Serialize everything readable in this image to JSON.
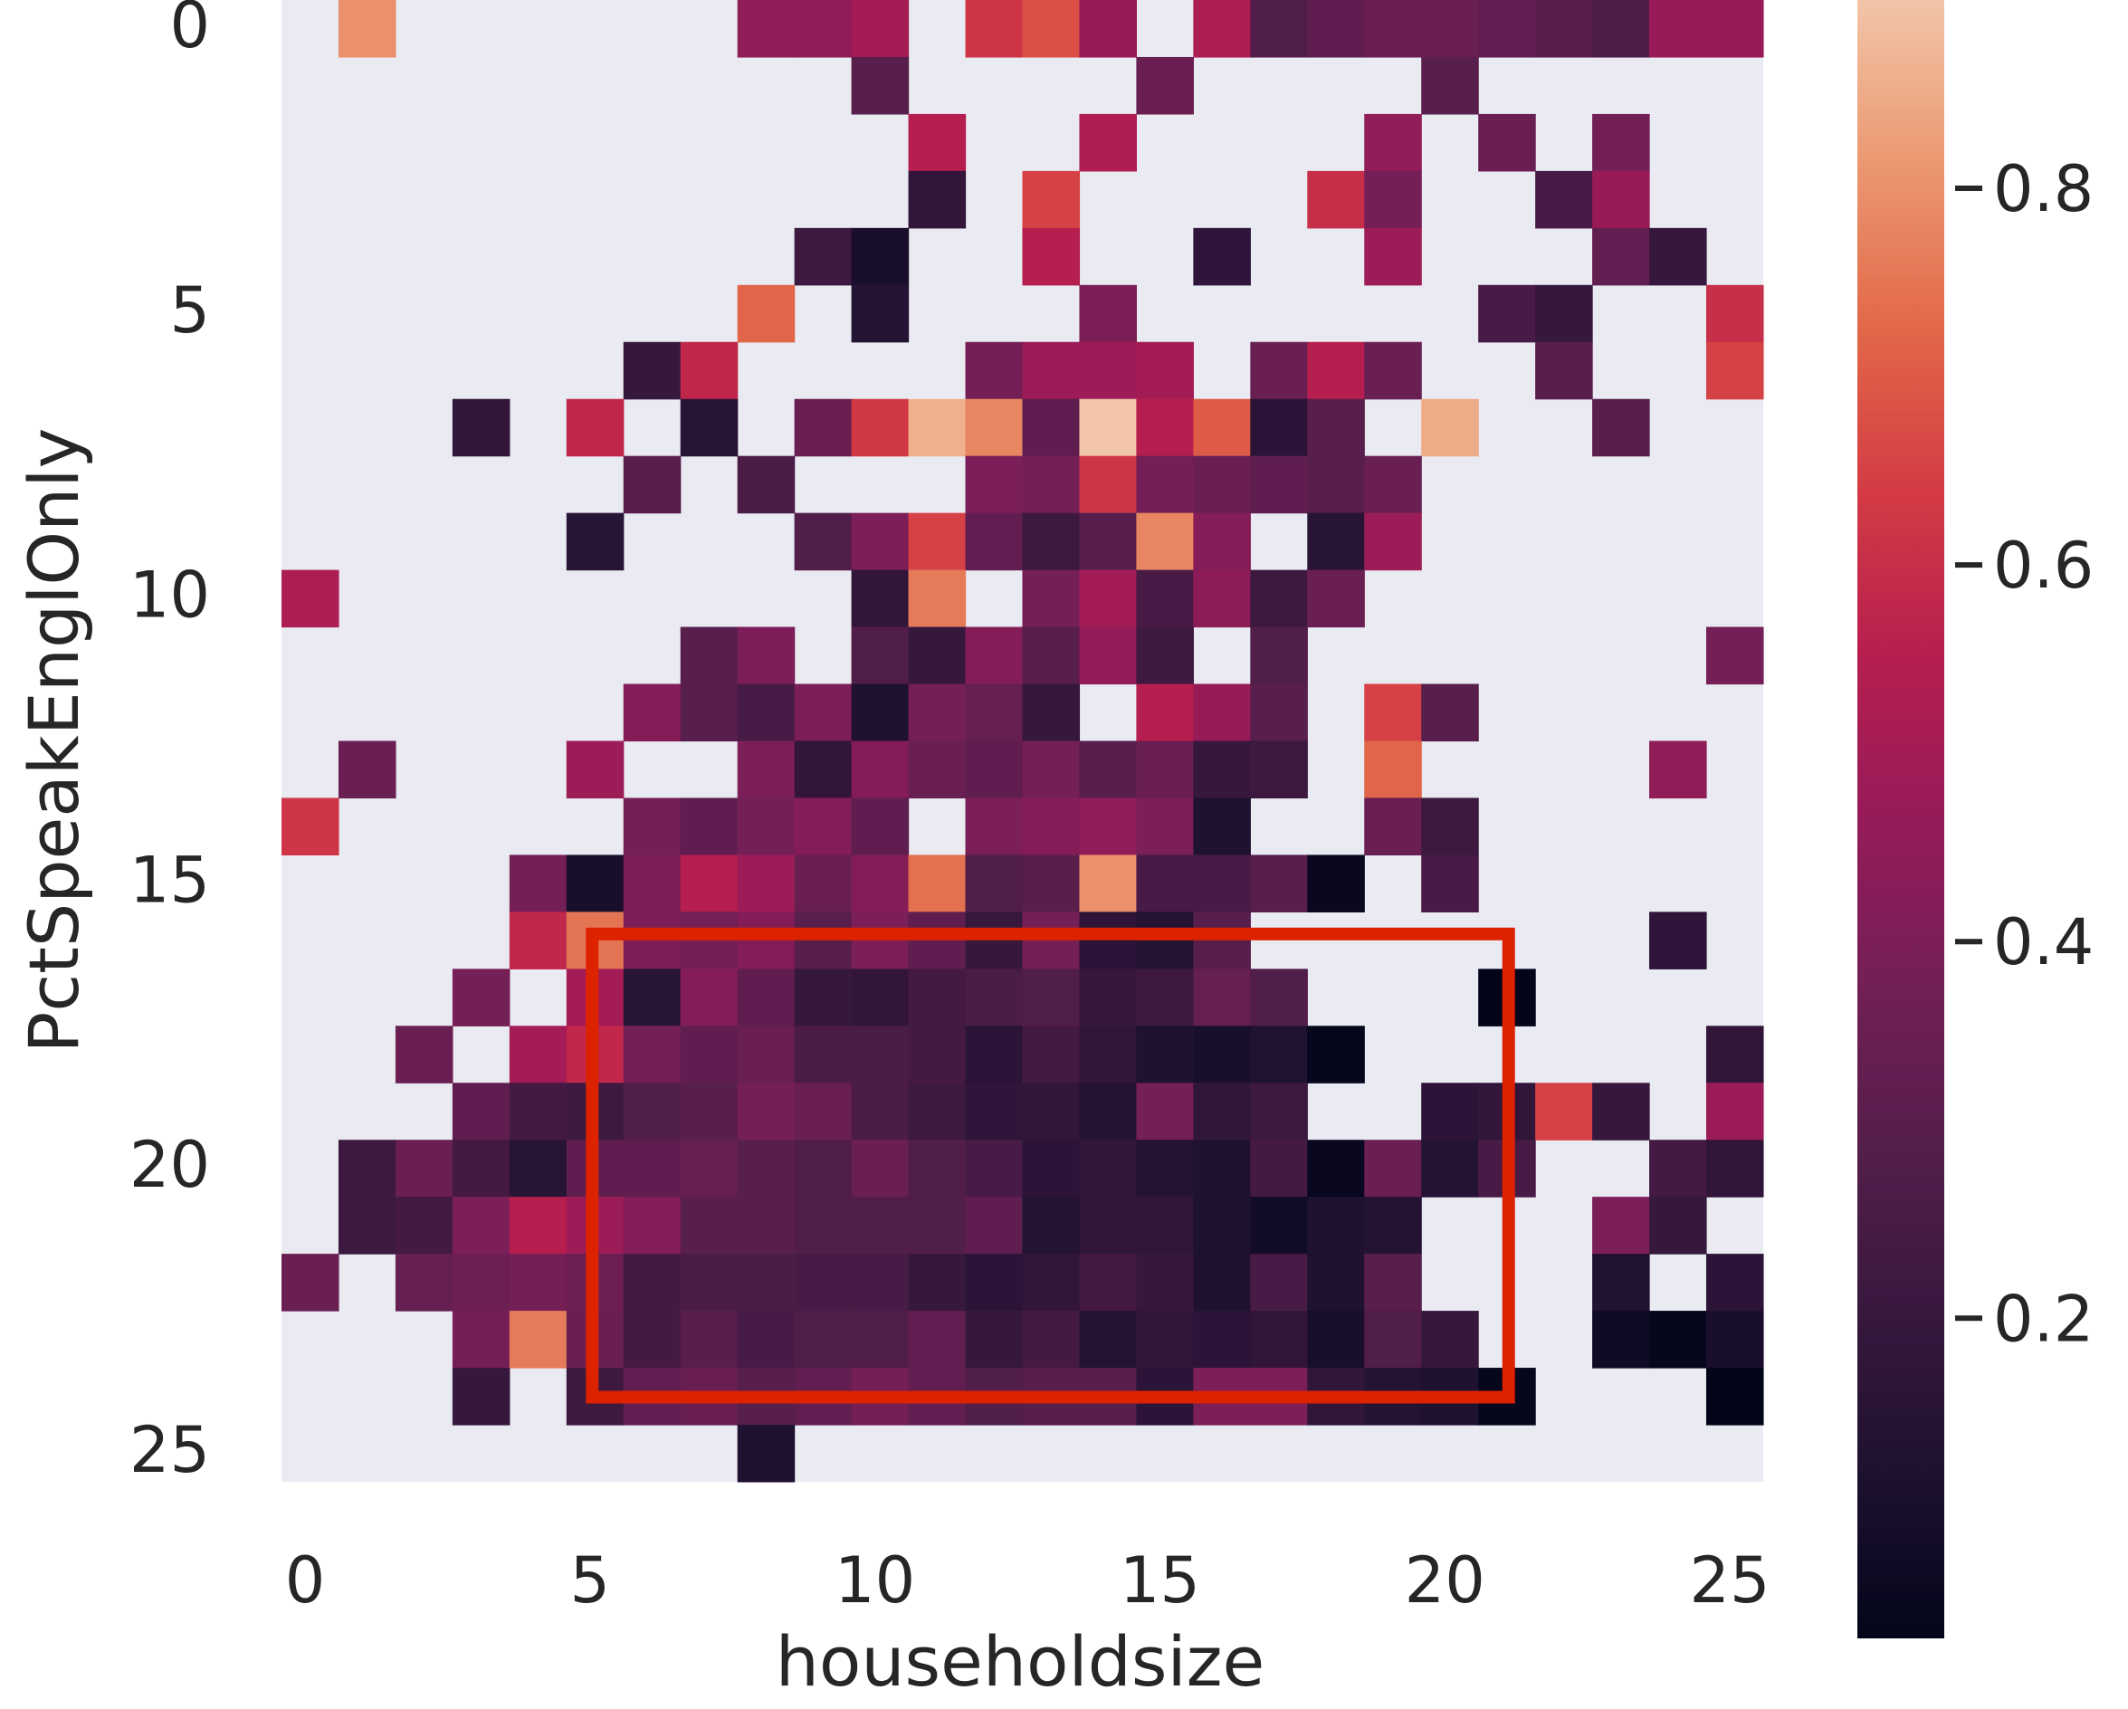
{
  "chart_data": {
    "type": "heatmap",
    "xlabel": "householdsize",
    "ylabel": "PctSpeakEnglOnly",
    "x_ticks": [
      "0",
      "5",
      "10",
      "15",
      "20",
      "25"
    ],
    "y_ticks": [
      "0",
      "5",
      "10",
      "15",
      "20",
      "25"
    ],
    "n_rows": 26,
    "n_cols": 26,
    "colorbar": {
      "ticks": [
        "0.2",
        "0.4",
        "0.6",
        "0.8"
      ],
      "range": [
        0.03,
        0.9
      ]
    },
    "background": "#eaeaf2",
    "highlight_box": {
      "color": "#dd2200",
      "x_range": [
        5.5,
        21.5
      ],
      "y_range": [
        16.5,
        24.5
      ]
    },
    "cells": [
      [
        0,
        1,
        0.8
      ],
      [
        0,
        8,
        0.45
      ],
      [
        0,
        9,
        0.45
      ],
      [
        0,
        10,
        0.5
      ],
      [
        0,
        12,
        0.62
      ],
      [
        0,
        13,
        0.68
      ],
      [
        0,
        14,
        0.47
      ],
      [
        0,
        16,
        0.52
      ],
      [
        0,
        17,
        0.28
      ],
      [
        0,
        18,
        0.32
      ],
      [
        0,
        19,
        0.35
      ],
      [
        0,
        20,
        0.35
      ],
      [
        0,
        21,
        0.33
      ],
      [
        0,
        22,
        0.3
      ],
      [
        0,
        23,
        0.27
      ],
      [
        0,
        24,
        0.47
      ],
      [
        0,
        25,
        0.47
      ],
      [
        1,
        10,
        0.3
      ],
      [
        1,
        15,
        0.35
      ],
      [
        1,
        20,
        0.3
      ],
      [
        2,
        11,
        0.55
      ],
      [
        2,
        14,
        0.53
      ],
      [
        2,
        19,
        0.45
      ],
      [
        2,
        21,
        0.35
      ],
      [
        2,
        23,
        0.38
      ],
      [
        3,
        11,
        0.18
      ],
      [
        3,
        13,
        0.65
      ],
      [
        3,
        18,
        0.6
      ],
      [
        3,
        19,
        0.38
      ],
      [
        3,
        22,
        0.25
      ],
      [
        3,
        23,
        0.47
      ],
      [
        4,
        9,
        0.22
      ],
      [
        4,
        10,
        0.1
      ],
      [
        4,
        13,
        0.55
      ],
      [
        4,
        16,
        0.17
      ],
      [
        4,
        19,
        0.48
      ],
      [
        4,
        23,
        0.33
      ],
      [
        4,
        24,
        0.2
      ],
      [
        5,
        8,
        0.72
      ],
      [
        5,
        10,
        0.14
      ],
      [
        5,
        14,
        0.4
      ],
      [
        5,
        21,
        0.25
      ],
      [
        5,
        22,
        0.2
      ],
      [
        5,
        25,
        0.6
      ],
      [
        6,
        6,
        0.2
      ],
      [
        6,
        7,
        0.58
      ],
      [
        6,
        12,
        0.38
      ],
      [
        6,
        13,
        0.48
      ],
      [
        6,
        14,
        0.48
      ],
      [
        6,
        15,
        0.5
      ],
      [
        6,
        17,
        0.35
      ],
      [
        6,
        18,
        0.55
      ],
      [
        6,
        19,
        0.35
      ],
      [
        6,
        22,
        0.3
      ],
      [
        6,
        25,
        0.65
      ],
      [
        7,
        3,
        0.18
      ],
      [
        7,
        5,
        0.58
      ],
      [
        7,
        7,
        0.15
      ],
      [
        7,
        9,
        0.35
      ],
      [
        7,
        10,
        0.63
      ],
      [
        7,
        11,
        0.86
      ],
      [
        7,
        12,
        0.78
      ],
      [
        7,
        13,
        0.32
      ],
      [
        7,
        14,
        0.9
      ],
      [
        7,
        15,
        0.55
      ],
      [
        7,
        16,
        0.7
      ],
      [
        7,
        17,
        0.16
      ],
      [
        7,
        18,
        0.3
      ],
      [
        7,
        20,
        0.85
      ],
      [
        7,
        23,
        0.3
      ],
      [
        8,
        6,
        0.3
      ],
      [
        8,
        8,
        0.26
      ],
      [
        8,
        12,
        0.4
      ],
      [
        8,
        13,
        0.38
      ],
      [
        8,
        14,
        0.62
      ],
      [
        8,
        15,
        0.38
      ],
      [
        8,
        16,
        0.35
      ],
      [
        8,
        17,
        0.32
      ],
      [
        8,
        18,
        0.3
      ],
      [
        8,
        19,
        0.35
      ],
      [
        9,
        5,
        0.15
      ],
      [
        9,
        9,
        0.28
      ],
      [
        9,
        10,
        0.4
      ],
      [
        9,
        11,
        0.65
      ],
      [
        9,
        12,
        0.33
      ],
      [
        9,
        13,
        0.22
      ],
      [
        9,
        14,
        0.3
      ],
      [
        9,
        15,
        0.78
      ],
      [
        9,
        16,
        0.42
      ],
      [
        9,
        18,
        0.15
      ],
      [
        9,
        19,
        0.48
      ],
      [
        10,
        0,
        0.52
      ],
      [
        10,
        10,
        0.18
      ],
      [
        10,
        11,
        0.76
      ],
      [
        10,
        13,
        0.38
      ],
      [
        10,
        14,
        0.5
      ],
      [
        10,
        15,
        0.25
      ],
      [
        10,
        16,
        0.44
      ],
      [
        10,
        17,
        0.22
      ],
      [
        10,
        18,
        0.35
      ],
      [
        11,
        7,
        0.3
      ],
      [
        11,
        8,
        0.4
      ],
      [
        11,
        10,
        0.28
      ],
      [
        11,
        11,
        0.2
      ],
      [
        11,
        12,
        0.42
      ],
      [
        11,
        13,
        0.3
      ],
      [
        11,
        14,
        0.46
      ],
      [
        11,
        15,
        0.22
      ],
      [
        11,
        17,
        0.28
      ],
      [
        11,
        25,
        0.38
      ],
      [
        12,
        6,
        0.42
      ],
      [
        12,
        7,
        0.3
      ],
      [
        12,
        8,
        0.25
      ],
      [
        12,
        9,
        0.4
      ],
      [
        12,
        10,
        0.12
      ],
      [
        12,
        11,
        0.38
      ],
      [
        12,
        12,
        0.34
      ],
      [
        12,
        13,
        0.2
      ],
      [
        12,
        15,
        0.55
      ],
      [
        12,
        16,
        0.47
      ],
      [
        12,
        17,
        0.3
      ],
      [
        12,
        19,
        0.65
      ],
      [
        12,
        20,
        0.3
      ],
      [
        13,
        1,
        0.35
      ],
      [
        13,
        5,
        0.48
      ],
      [
        13,
        8,
        0.4
      ],
      [
        13,
        9,
        0.18
      ],
      [
        13,
        10,
        0.42
      ],
      [
        13,
        11,
        0.35
      ],
      [
        13,
        12,
        0.32
      ],
      [
        13,
        13,
        0.38
      ],
      [
        13,
        14,
        0.3
      ],
      [
        13,
        15,
        0.35
      ],
      [
        13,
        16,
        0.2
      ],
      [
        13,
        17,
        0.22
      ],
      [
        13,
        19,
        0.72
      ],
      [
        13,
        24,
        0.45
      ],
      [
        14,
        0,
        0.62
      ],
      [
        14,
        6,
        0.38
      ],
      [
        14,
        7,
        0.32
      ],
      [
        14,
        8,
        0.38
      ],
      [
        14,
        9,
        0.42
      ],
      [
        14,
        10,
        0.32
      ],
      [
        14,
        12,
        0.4
      ],
      [
        14,
        13,
        0.42
      ],
      [
        14,
        14,
        0.45
      ],
      [
        14,
        15,
        0.4
      ],
      [
        14,
        16,
        0.12
      ],
      [
        14,
        19,
        0.35
      ],
      [
        14,
        20,
        0.22
      ],
      [
        15,
        4,
        0.38
      ],
      [
        15,
        5,
        0.1
      ],
      [
        15,
        6,
        0.4
      ],
      [
        15,
        7,
        0.55
      ],
      [
        15,
        8,
        0.48
      ],
      [
        15,
        9,
        0.35
      ],
      [
        15,
        10,
        0.42
      ],
      [
        15,
        11,
        0.74
      ],
      [
        15,
        12,
        0.28
      ],
      [
        15,
        13,
        0.3
      ],
      [
        15,
        14,
        0.8
      ],
      [
        15,
        15,
        0.25
      ],
      [
        15,
        16,
        0.25
      ],
      [
        15,
        17,
        0.3
      ],
      [
        15,
        18,
        0.05
      ],
      [
        15,
        20,
        0.25
      ],
      [
        16,
        4,
        0.58
      ],
      [
        16,
        5,
        0.75
      ],
      [
        16,
        6,
        0.4
      ],
      [
        16,
        7,
        0.38
      ],
      [
        16,
        8,
        0.42
      ],
      [
        16,
        9,
        0.3
      ],
      [
        16,
        10,
        0.4
      ],
      [
        16,
        11,
        0.32
      ],
      [
        16,
        12,
        0.2
      ],
      [
        16,
        13,
        0.38
      ],
      [
        16,
        14,
        0.16
      ],
      [
        16,
        15,
        0.14
      ],
      [
        16,
        16,
        0.3
      ],
      [
        16,
        24,
        0.17
      ],
      [
        17,
        3,
        0.38
      ],
      [
        17,
        5,
        0.5
      ],
      [
        17,
        6,
        0.15
      ],
      [
        17,
        7,
        0.42
      ],
      [
        17,
        8,
        0.32
      ],
      [
        17,
        9,
        0.2
      ],
      [
        17,
        10,
        0.18
      ],
      [
        17,
        11,
        0.24
      ],
      [
        17,
        12,
        0.26
      ],
      [
        17,
        13,
        0.28
      ],
      [
        17,
        14,
        0.2
      ],
      [
        17,
        15,
        0.22
      ],
      [
        17,
        16,
        0.34
      ],
      [
        17,
        17,
        0.28
      ],
      [
        17,
        21,
        0.03
      ],
      [
        18,
        2,
        0.35
      ],
      [
        18,
        4,
        0.5
      ],
      [
        18,
        5,
        0.58
      ],
      [
        18,
        6,
        0.38
      ],
      [
        18,
        7,
        0.32
      ],
      [
        18,
        8,
        0.35
      ],
      [
        18,
        9,
        0.26
      ],
      [
        18,
        10,
        0.26
      ],
      [
        18,
        11,
        0.24
      ],
      [
        18,
        12,
        0.16
      ],
      [
        18,
        13,
        0.24
      ],
      [
        18,
        14,
        0.18
      ],
      [
        18,
        15,
        0.12
      ],
      [
        18,
        16,
        0.1
      ],
      [
        18,
        17,
        0.13
      ],
      [
        18,
        18,
        0.04
      ],
      [
        18,
        25,
        0.18
      ],
      [
        19,
        3,
        0.32
      ],
      [
        19,
        4,
        0.24
      ],
      [
        19,
        5,
        0.22
      ],
      [
        19,
        6,
        0.28
      ],
      [
        19,
        7,
        0.3
      ],
      [
        19,
        8,
        0.38
      ],
      [
        19,
        9,
        0.35
      ],
      [
        19,
        10,
        0.26
      ],
      [
        19,
        11,
        0.22
      ],
      [
        19,
        12,
        0.17
      ],
      [
        19,
        13,
        0.18
      ],
      [
        19,
        14,
        0.14
      ],
      [
        19,
        15,
        0.38
      ],
      [
        19,
        16,
        0.18
      ],
      [
        19,
        17,
        0.22
      ],
      [
        19,
        20,
        0.16
      ],
      [
        19,
        21,
        0.18
      ],
      [
        19,
        22,
        0.65
      ],
      [
        19,
        23,
        0.2
      ],
      [
        19,
        25,
        0.48
      ],
      [
        20,
        1,
        0.22
      ],
      [
        20,
        2,
        0.35
      ],
      [
        20,
        3,
        0.24
      ],
      [
        20,
        4,
        0.15
      ],
      [
        20,
        5,
        0.32
      ],
      [
        20,
        6,
        0.32
      ],
      [
        20,
        7,
        0.34
      ],
      [
        20,
        8,
        0.3
      ],
      [
        20,
        9,
        0.28
      ],
      [
        20,
        10,
        0.35
      ],
      [
        20,
        11,
        0.28
      ],
      [
        20,
        12,
        0.25
      ],
      [
        20,
        13,
        0.16
      ],
      [
        20,
        14,
        0.18
      ],
      [
        20,
        15,
        0.14
      ],
      [
        20,
        16,
        0.12
      ],
      [
        20,
        17,
        0.24
      ],
      [
        20,
        18,
        0.05
      ],
      [
        20,
        19,
        0.35
      ],
      [
        20,
        20,
        0.14
      ],
      [
        20,
        21,
        0.25
      ],
      [
        20,
        24,
        0.24
      ],
      [
        20,
        25,
        0.18
      ],
      [
        21,
        1,
        0.22
      ],
      [
        21,
        2,
        0.24
      ],
      [
        21,
        3,
        0.4
      ],
      [
        21,
        4,
        0.55
      ],
      [
        21,
        5,
        0.48
      ],
      [
        21,
        6,
        0.42
      ],
      [
        21,
        7,
        0.3
      ],
      [
        21,
        8,
        0.3
      ],
      [
        21,
        9,
        0.28
      ],
      [
        21,
        10,
        0.28
      ],
      [
        21,
        11,
        0.28
      ],
      [
        21,
        12,
        0.32
      ],
      [
        21,
        13,
        0.14
      ],
      [
        21,
        14,
        0.18
      ],
      [
        21,
        15,
        0.18
      ],
      [
        21,
        16,
        0.12
      ],
      [
        21,
        17,
        0.08
      ],
      [
        21,
        18,
        0.12
      ],
      [
        21,
        19,
        0.14
      ],
      [
        21,
        23,
        0.4
      ],
      [
        21,
        24,
        0.2
      ],
      [
        22,
        0,
        0.35
      ],
      [
        22,
        2,
        0.34
      ],
      [
        22,
        3,
        0.36
      ],
      [
        22,
        4,
        0.38
      ],
      [
        22,
        5,
        0.36
      ],
      [
        22,
        6,
        0.24
      ],
      [
        22,
        7,
        0.26
      ],
      [
        22,
        8,
        0.26
      ],
      [
        22,
        9,
        0.25
      ],
      [
        22,
        10,
        0.25
      ],
      [
        22,
        11,
        0.2
      ],
      [
        22,
        12,
        0.16
      ],
      [
        22,
        13,
        0.18
      ],
      [
        22,
        14,
        0.24
      ],
      [
        22,
        15,
        0.2
      ],
      [
        22,
        16,
        0.12
      ],
      [
        22,
        17,
        0.25
      ],
      [
        22,
        18,
        0.12
      ],
      [
        22,
        19,
        0.3
      ],
      [
        22,
        23,
        0.13
      ],
      [
        22,
        25,
        0.16
      ],
      [
        23,
        3,
        0.38
      ],
      [
        23,
        4,
        0.76
      ],
      [
        23,
        5,
        0.35
      ],
      [
        23,
        6,
        0.24
      ],
      [
        23,
        7,
        0.3
      ],
      [
        23,
        8,
        0.25
      ],
      [
        23,
        9,
        0.28
      ],
      [
        23,
        10,
        0.28
      ],
      [
        23,
        11,
        0.33
      ],
      [
        23,
        12,
        0.2
      ],
      [
        23,
        13,
        0.24
      ],
      [
        23,
        14,
        0.14
      ],
      [
        23,
        15,
        0.18
      ],
      [
        23,
        16,
        0.16
      ],
      [
        23,
        17,
        0.18
      ],
      [
        23,
        18,
        0.1
      ],
      [
        23,
        19,
        0.28
      ],
      [
        23,
        20,
        0.2
      ],
      [
        23,
        23,
        0.07
      ],
      [
        23,
        24,
        0.04
      ],
      [
        23,
        25,
        0.1
      ],
      [
        24,
        3,
        0.2
      ],
      [
        24,
        5,
        0.22
      ],
      [
        24,
        6,
        0.33
      ],
      [
        24,
        7,
        0.35
      ],
      [
        24,
        8,
        0.3
      ],
      [
        24,
        9,
        0.33
      ],
      [
        24,
        10,
        0.38
      ],
      [
        24,
        11,
        0.33
      ],
      [
        24,
        12,
        0.28
      ],
      [
        24,
        13,
        0.3
      ],
      [
        24,
        14,
        0.3
      ],
      [
        24,
        15,
        0.16
      ],
      [
        24,
        16,
        0.4
      ],
      [
        24,
        17,
        0.4
      ],
      [
        24,
        18,
        0.18
      ],
      [
        24,
        19,
        0.14
      ],
      [
        24,
        20,
        0.12
      ],
      [
        24,
        21,
        0.04
      ],
      [
        24,
        25,
        0.03
      ],
      [
        25,
        8,
        0.12
      ]
    ]
  }
}
